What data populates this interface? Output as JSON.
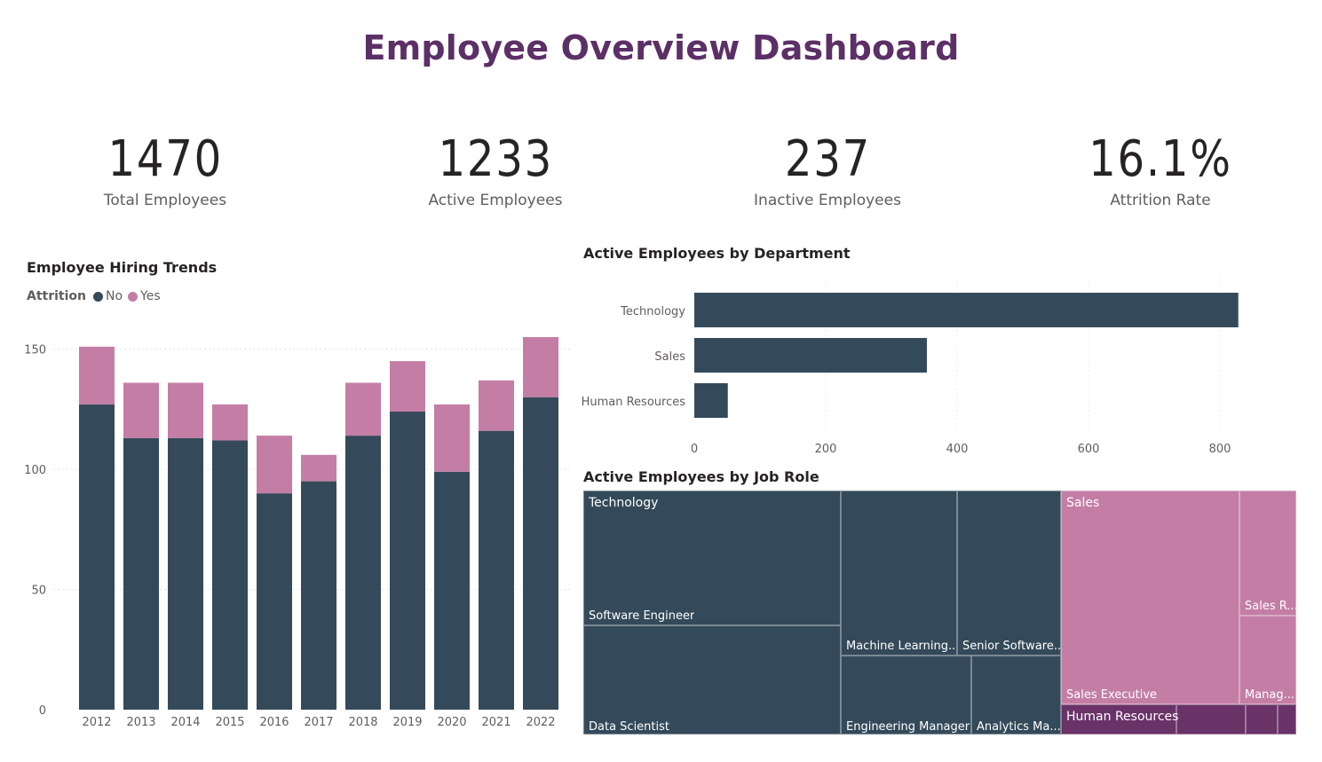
{
  "title": "Employee Overview Dashboard",
  "kpis": [
    {
      "value": "1470",
      "label": "Total Employees"
    },
    {
      "value": "1233",
      "label": "Active Employees"
    },
    {
      "value": "237",
      "label": "Inactive Employees"
    },
    {
      "value": "16.1%",
      "label": "Attrition Rate"
    }
  ],
  "colors": {
    "no": "#344a5a",
    "yes": "#c47ea6",
    "hr": "#6a3368",
    "title": "#5c2f66"
  },
  "hiring_chart": {
    "title": "Employee Hiring Trends",
    "legend_title": "Attrition",
    "legend": [
      "No",
      "Yes"
    ]
  },
  "dept_chart": {
    "title": "Active Employees by Department"
  },
  "role_chart": {
    "title": "Active Employees by Job Role",
    "groups": [
      "Technology",
      "Sales",
      "Human Resources"
    ],
    "labels": {
      "software_engineer": "Software Engineer",
      "data_scientist": "Data Scientist",
      "ml": "Machine Learning...",
      "senior_sw": "Senior Software...",
      "eng_mgr": "Engineering Manager",
      "analytics": "Analytics Ma...",
      "sales_exec": "Sales Executive",
      "sales_rep": "Sales R...",
      "sales_mgr": "Manag..."
    }
  },
  "chart_data": [
    {
      "type": "bar",
      "stacked": true,
      "title": "Employee Hiring Trends",
      "categories": [
        "2012",
        "2013",
        "2014",
        "2015",
        "2016",
        "2017",
        "2018",
        "2019",
        "2020",
        "2021",
        "2022"
      ],
      "series": [
        {
          "name": "No",
          "values": [
            127,
            113,
            113,
            112,
            90,
            95,
            114,
            124,
            99,
            116,
            130
          ]
        },
        {
          "name": "Yes",
          "values": [
            24,
            23,
            23,
            15,
            24,
            11,
            22,
            21,
            28,
            21,
            25
          ]
        }
      ],
      "yticks": [
        0,
        50,
        100,
        150
      ],
      "ylim": [
        0,
        155
      ],
      "legend": "top-left",
      "grid": true
    },
    {
      "type": "bar",
      "orientation": "horizontal",
      "title": "Active Employees by Department",
      "categories": [
        "Technology",
        "Sales",
        "Human Resources"
      ],
      "values": [
        828,
        354,
        51
      ],
      "xticks": [
        0,
        200,
        400,
        600,
        800
      ],
      "xlim": [
        0,
        880
      ],
      "grid": true
    }
  ]
}
